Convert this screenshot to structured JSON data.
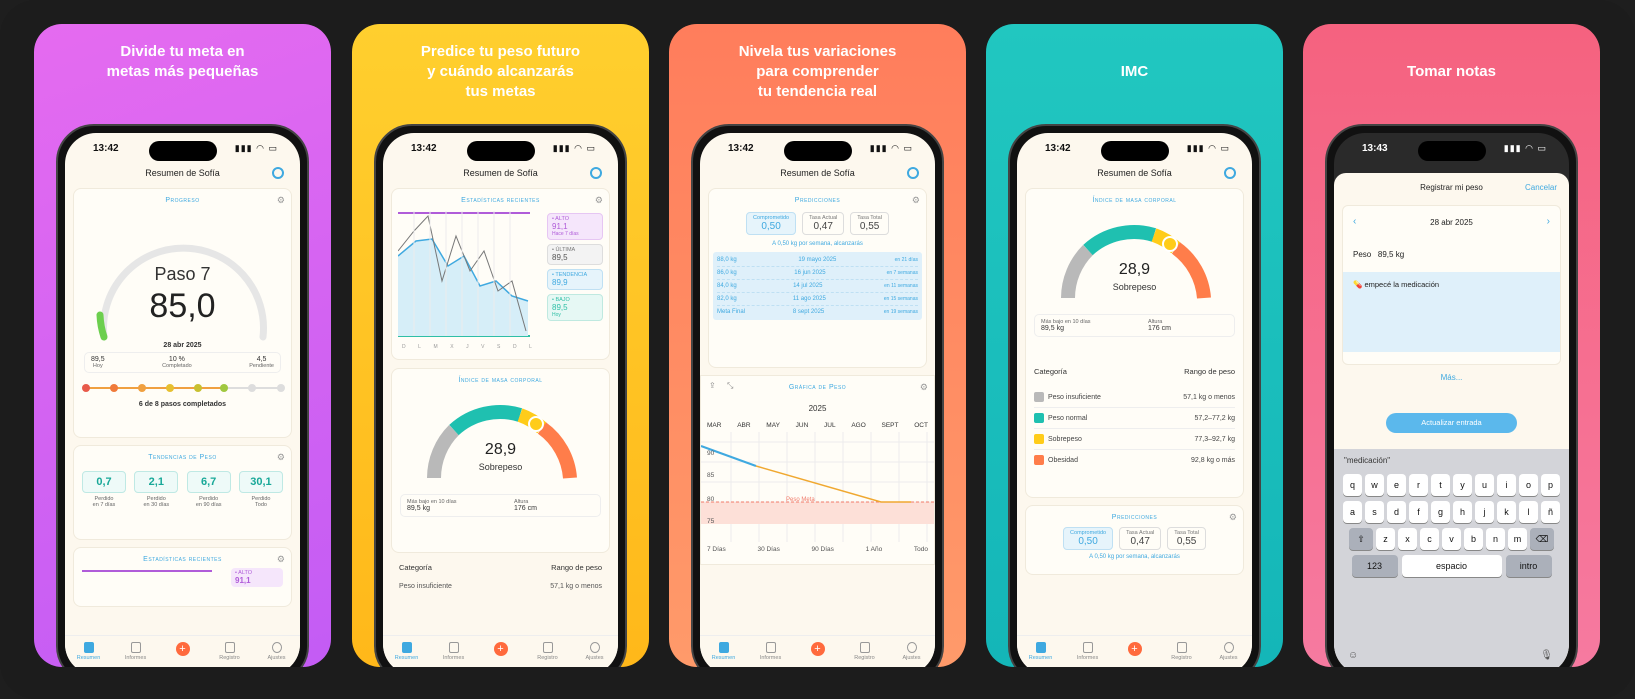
{
  "cards": [
    {
      "headline": "Divide tu meta en\nmetas más pequeñas"
    },
    {
      "headline": "Predice tu peso futuro\ny cuándo alcanzarás\ntus metas"
    },
    {
      "headline": "Nivela tus variaciones\npara comprender\ntu tendencia real"
    },
    {
      "headline": "IMC"
    },
    {
      "headline": "Tomar notas"
    }
  ],
  "status": {
    "time": "13:42",
    "time5": "13:43"
  },
  "nav_title": "Resumen de Sofía",
  "tabs": [
    "Resumen",
    "Informes",
    "+",
    "Registro",
    "Ajustes"
  ],
  "p1": {
    "progress_title": "Progreso",
    "step": "Paso 7",
    "weight": "85,0",
    "date": "28 abr 2025",
    "stats": [
      {
        "v": "89,5",
        "l": "Hoy"
      },
      {
        "v": "10 %",
        "l": "Completado"
      },
      {
        "v": "4,5",
        "l": "Pendiente"
      }
    ],
    "steps_done": "6 de 8 pasos completados",
    "trends_title": "Tendencias de Peso",
    "trends": [
      {
        "v": "0,7",
        "l": "Perdido\nen 7 días"
      },
      {
        "v": "2,1",
        "l": "Perdido\nen 30 días"
      },
      {
        "v": "6,7",
        "l": "Perdido\nen 90 días"
      },
      {
        "v": "30,1",
        "l": "Perdido\nTodo"
      }
    ],
    "recent_title": "Estadísticas recientes",
    "alto_label": "• ALTO",
    "alto_value": "91,1"
  },
  "p2": {
    "recent_title": "Estadísticas recientes",
    "legend": [
      {
        "k": "• ALTO",
        "v": "91,1",
        "s": "Hace 7 días",
        "color": "#b05cd9"
      },
      {
        "k": "• ÚLTIMA",
        "v": "89,5",
        "s": "",
        "color": "#888888"
      },
      {
        "k": "• TENDENCIA",
        "v": "89,9",
        "s": "",
        "color": "#3fa9e0"
      },
      {
        "k": "• BAJO",
        "v": "89,5",
        "s": "Hoy",
        "color": "#2fbfa6"
      }
    ],
    "days": [
      "D",
      "L",
      "M",
      "X",
      "J",
      "V",
      "S",
      "D",
      "L"
    ],
    "imc_title": "Índice de masa corporal",
    "imc_value": "28,9",
    "imc_label": "Sobrepeso",
    "low10_label": "Más bajo en 10 días",
    "low10_value": "89,5 kg",
    "height_label": "Altura",
    "height_value": "176 cm",
    "cat_header": "Categoría",
    "range_header": "Rango de peso",
    "first_cat": "Peso insuficiente",
    "first_range": "57,1 kg o menos"
  },
  "p3": {
    "pred_title": "Predicciones",
    "boxes": [
      {
        "k": "Comprometido",
        "v": "0,50"
      },
      {
        "k": "Tasa Actual",
        "v": "0,47"
      },
      {
        "k": "Tasa Total",
        "v": "0,55"
      }
    ],
    "rate_line": "A 0,50 kg por semana, alcanzarás",
    "preds": [
      {
        "w": "88,0 kg",
        "d": "19 mayo 2025",
        "e": "en 21 días"
      },
      {
        "w": "86,0 kg",
        "d": "16 jun 2025",
        "e": "en 7 semanas"
      },
      {
        "w": "84,0 kg",
        "d": "14 jul 2025",
        "e": "en 11 semanas"
      },
      {
        "w": "82,0 kg",
        "d": "11 ago 2025",
        "e": "en 15 semanas"
      },
      {
        "w": "Meta Final",
        "d": "8 sept 2025",
        "e": "en 19 semanas"
      }
    ],
    "graph_title": "Gráfica de Peso",
    "year": "2025",
    "months": [
      "MAR",
      "ABR",
      "MAY",
      "JUN",
      "JUL",
      "AGO",
      "SEPT",
      "OCT"
    ],
    "yticks": [
      "90",
      "85",
      "80",
      "75"
    ],
    "goal_label": "Peso Meta",
    "ranges": [
      "7 Días",
      "30 Días",
      "90 Días",
      "1 Año",
      "Todo"
    ]
  },
  "p4": {
    "imc_title": "Índice de masa corporal",
    "imc_value": "28,9",
    "imc_label": "Sobrepeso",
    "low10_label": "Más bajo en 10 días",
    "low10_value": "89,5 kg",
    "height_label": "Altura",
    "height_value": "176 cm",
    "cat_header": "Categoría",
    "range_header": "Rango de peso",
    "cats": [
      {
        "n": "Peso insuficiente",
        "r": "57,1 kg o menos",
        "c": "#b9b9b9"
      },
      {
        "n": "Peso normal",
        "r": "57,2–77,2 kg",
        "c": "#1fc0b0"
      },
      {
        "n": "Sobrepeso",
        "r": "77,3–92,7 kg",
        "c": "#ffcc1a"
      },
      {
        "n": "Obesidad",
        "r": "92,8 kg o más",
        "c": "#ff7d4a"
      }
    ],
    "pred_title": "Predicciones",
    "boxes": [
      {
        "k": "Comprometido",
        "v": "0,50"
      },
      {
        "k": "Tasa Actual",
        "v": "0,47"
      },
      {
        "k": "Tasa Total",
        "v": "0,55"
      }
    ],
    "rate_line": "A 0,50 kg por semana, alcanzarás"
  },
  "p5": {
    "title": "Registrar mi peso",
    "cancel": "Cancelar",
    "date": "28 abr 2025",
    "weight_label": "Peso",
    "weight_value": "89,5 kg",
    "note": "empecé la medicación",
    "more": "Más...",
    "update": "Actualizar entrada",
    "suggestion": "\"medicación\"",
    "row1": [
      "q",
      "w",
      "e",
      "r",
      "t",
      "y",
      "u",
      "i",
      "o",
      "p"
    ],
    "row2": [
      "a",
      "s",
      "d",
      "f",
      "g",
      "h",
      "j",
      "k",
      "l",
      "ñ"
    ],
    "row3": [
      "z",
      "x",
      "c",
      "v",
      "b",
      "n",
      "m"
    ],
    "k123": "123",
    "space": "espacio",
    "intro": "intro"
  }
}
